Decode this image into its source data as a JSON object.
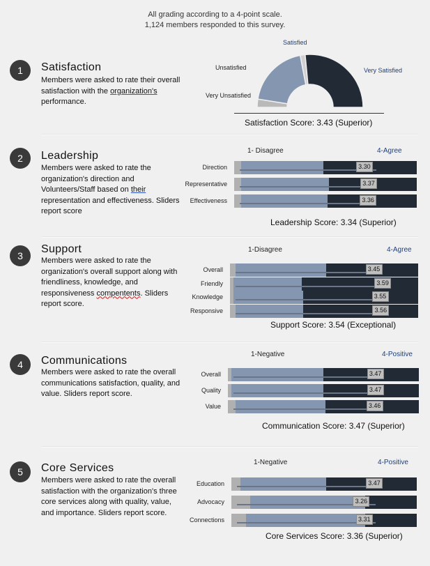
{
  "header": {
    "line1": "All grading according to a 4-point scale.",
    "line2": "1,124 members responded to this survey."
  },
  "colors": {
    "dark": "#222a36",
    "mid": "#8596b0",
    "light": "#c8c8c8",
    "accent": "#1f3f78"
  },
  "satisfaction": {
    "number": "1",
    "title": "Satisfaction",
    "desc_part1": "Members were asked to rate their overall satisfaction with the ",
    "desc_link": "organization's",
    "desc_part2": " performance.",
    "score": "Satisfaction Score: 3.43 (Superior)",
    "gauge_labels": {
      "satisfied": "Satisfied",
      "unsatisfied": "Unsatisfied",
      "very_unsatisfied": "Very Unsatisfied",
      "very_satisfied": "Very Satisfied"
    }
  },
  "leadership": {
    "number": "2",
    "title": "Leadership",
    "desc_part1": "Members were asked to rate the organization's direction and Volunteers/Staff based on ",
    "desc_link": "their",
    "desc_part2": " representation and effectiveness. Sliders report score",
    "scale_low": "1- Disagree",
    "scale_high": "4-Agree",
    "score": "Leadership Score: 3.34 (Superior)"
  },
  "support": {
    "number": "3",
    "title": "Support",
    "desc_part1": "Members were asked to rate the organization's overall support along with friendliness, knowledge, and responsiveness ",
    "desc_misspelled": "compentents",
    "desc_part2": ". Sliders report score.",
    "scale_low": "1-Disagree",
    "scale_high": "4-Agree",
    "score": "Support Score: 3.54 (Exceptional)"
  },
  "communications": {
    "number": "4",
    "title": "Communications",
    "desc": "Members were asked to rate the overall communications satisfaction, quality, and value. Sliders report score.",
    "scale_low": "1-Negative",
    "scale_high": "4-Positive",
    "score": "Communication Score: 3.47 (Superior)"
  },
  "core": {
    "number": "5",
    "title": "Core Services",
    "desc": "Members were asked to rate the overall satisfaction with the organization's three core services along with quality, value, and importance. Sliders report score.",
    "scale_low": "1-Negative",
    "scale_high": "4-Positive",
    "score": "Core Services Score: 3.36 (Superior)"
  },
  "chart_data": [
    {
      "type": "pie",
      "subtype": "half-donut gauge",
      "categories": [
        "Very Unsatisfied",
        "Unsatisfied",
        "Satisfied",
        "Very Satisfied"
      ],
      "values": [
        0.05,
        0.39,
        0.03,
        0.53
      ]
    },
    {
      "type": "bar",
      "subtype": "stacked horizontal slider",
      "categories": [
        "Direction",
        "Representative",
        "Effectiveness"
      ],
      "scores": [
        3.3,
        3.37,
        3.36
      ],
      "segments": [
        [
          0.04,
          0.45,
          0.51
        ],
        [
          0.04,
          0.48,
          0.48
        ],
        [
          0.04,
          0.47,
          0.49
        ]
      ]
    },
    {
      "type": "bar",
      "subtype": "stacked horizontal slider",
      "categories": [
        "Overall",
        "Friendly",
        "Knowledge",
        "Responsive"
      ],
      "scores": [
        3.45,
        3.59,
        3.55,
        3.56
      ],
      "segments": [
        [
          0.03,
          0.48,
          0.49
        ],
        [
          0.02,
          0.36,
          0.62
        ],
        [
          0.02,
          0.37,
          0.61
        ],
        [
          0.03,
          0.36,
          0.61
        ]
      ]
    },
    {
      "type": "bar",
      "subtype": "stacked horizontal slider",
      "categories": [
        "Overall",
        "Quality",
        "Value"
      ],
      "scores": [
        3.47,
        3.47,
        3.46
      ],
      "segments": [
        [
          0.02,
          0.48,
          0.5
        ],
        [
          0.02,
          0.48,
          0.5
        ],
        [
          0.04,
          0.47,
          0.49
        ]
      ]
    },
    {
      "type": "bar",
      "subtype": "stacked horizontal slider",
      "categories": [
        "Education",
        "Advocacy",
        "Connections"
      ],
      "scores": [
        3.47,
        3.26,
        3.31
      ],
      "segments": [
        [
          0.05,
          0.46,
          0.49
        ],
        [
          0.1,
          0.62,
          0.28
        ],
        [
          0.08,
          0.64,
          0.28
        ]
      ]
    }
  ]
}
